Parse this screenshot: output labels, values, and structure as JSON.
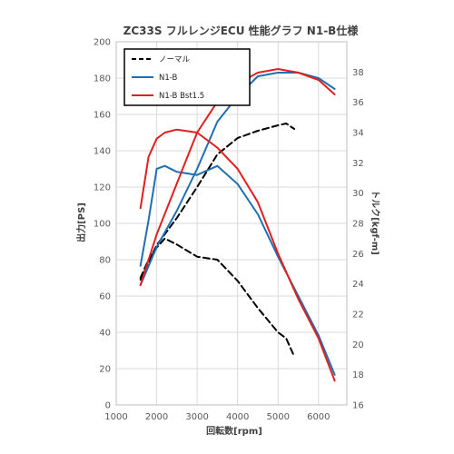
{
  "chart_data": {
    "type": "line",
    "title": "ZC33S フルレンジECU 性能グラフ N1-B仕様",
    "xlabel": "回転数[rpm]",
    "ylabel_left": "出力[PS]",
    "ylabel_right": "トルク[kgf-m]",
    "x_ticks": [
      1000,
      2000,
      3000,
      4000,
      5000,
      6000
    ],
    "xlim": [
      1000,
      6700
    ],
    "y_left_ticks": [
      0,
      20,
      40,
      60,
      80,
      100,
      120,
      140,
      160,
      180,
      200
    ],
    "ylim_left": [
      0,
      200
    ],
    "y_right_ticks": [
      16,
      18,
      20,
      22,
      24,
      26,
      28,
      30,
      32,
      34,
      36,
      38
    ],
    "ylim_right": [
      16,
      40
    ],
    "grid": true,
    "legend_position": "top-left",
    "series": [
      {
        "name": "ノーマル",
        "color": "#000000",
        "dash": "dashed",
        "power": [
          [
            1600,
            69
          ],
          [
            2000,
            88
          ],
          [
            2500,
            103
          ],
          [
            3000,
            120
          ],
          [
            3500,
            138
          ],
          [
            4000,
            147
          ],
          [
            4500,
            151
          ],
          [
            5000,
            154
          ],
          [
            5200,
            155
          ],
          [
            5400,
            152
          ]
        ],
        "torque": [
          [
            1600,
            24.4
          ],
          [
            1800,
            25.6
          ],
          [
            2000,
            26.4
          ],
          [
            2200,
            27.0
          ],
          [
            2500,
            26.6
          ],
          [
            3000,
            25.8
          ],
          [
            3500,
            25.6
          ],
          [
            4000,
            24.2
          ],
          [
            4500,
            22.4
          ],
          [
            5000,
            20.8
          ],
          [
            5200,
            20.4
          ],
          [
            5400,
            19.2
          ]
        ]
      },
      {
        "name": "N1-B",
        "color": "#1f6fb2",
        "dash": "solid",
        "power": [
          [
            1600,
            66
          ],
          [
            2000,
            87
          ],
          [
            2500,
            107
          ],
          [
            3000,
            130
          ],
          [
            3500,
            156
          ],
          [
            4000,
            170
          ],
          [
            4500,
            181
          ],
          [
            5000,
            183
          ],
          [
            5500,
            183
          ],
          [
            6000,
            180
          ],
          [
            6400,
            174
          ]
        ],
        "torque": [
          [
            1600,
            25.2
          ],
          [
            1800,
            28.2
          ],
          [
            2000,
            31.6
          ],
          [
            2200,
            31.8
          ],
          [
            2500,
            31.4
          ],
          [
            3000,
            31.2
          ],
          [
            3500,
            31.8
          ],
          [
            4000,
            30.6
          ],
          [
            4500,
            28.6
          ],
          [
            5000,
            25.8
          ],
          [
            5500,
            23.2
          ],
          [
            6000,
            20.6
          ],
          [
            6400,
            18.0
          ]
        ]
      },
      {
        "name": "N1-B Bst1.5",
        "color": "#e0201f",
        "dash": "solid",
        "power": [
          [
            1600,
            66
          ],
          [
            2000,
            94
          ],
          [
            2500,
            122
          ],
          [
            3000,
            150
          ],
          [
            3500,
            167
          ],
          [
            4000,
            177
          ],
          [
            4500,
            183
          ],
          [
            5000,
            185
          ],
          [
            5500,
            183
          ],
          [
            6000,
            179
          ],
          [
            6400,
            171
          ]
        ],
        "torque": [
          [
            1600,
            29.0
          ],
          [
            1800,
            32.4
          ],
          [
            2000,
            33.6
          ],
          [
            2200,
            34.0
          ],
          [
            2500,
            34.2
          ],
          [
            3000,
            34.0
          ],
          [
            3500,
            33.0
          ],
          [
            4000,
            31.6
          ],
          [
            4500,
            29.4
          ],
          [
            5000,
            26.0
          ],
          [
            5500,
            23.0
          ],
          [
            6000,
            20.4
          ],
          [
            6400,
            17.6
          ]
        ]
      }
    ]
  }
}
